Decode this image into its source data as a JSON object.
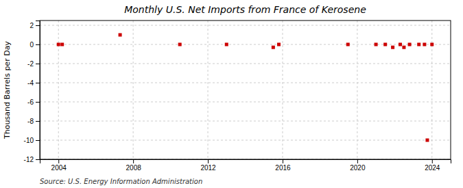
{
  "chart_data": {
    "type": "scatter",
    "title": "Monthly U.S. Net Imports from France of Kerosene",
    "ylabel": "Thousand Barrels per Day",
    "annotations": [
      "Source: U.S. Energy Information Administration"
    ],
    "x": [
      2004.0,
      2004.2,
      2007.3,
      2010.5,
      2013.0,
      2015.5,
      2015.8,
      2019.5,
      2021.0,
      2021.5,
      2021.9,
      2022.3,
      2022.5,
      2022.8,
      2023.3,
      2023.6,
      2023.75,
      2024.0
    ],
    "values": [
      0,
      0,
      1,
      0,
      0,
      -0.3,
      0,
      0,
      0,
      0,
      -0.3,
      0,
      -0.3,
      0,
      0,
      0,
      -10,
      0
    ],
    "color": "#cc0000",
    "marker": "square",
    "xlim": [
      2003.0,
      2025.0
    ],
    "ylim": [
      -12,
      2.5
    ],
    "xticks": [
      2004,
      2008,
      2012,
      2016,
      2020,
      2024
    ],
    "yticks": [
      2,
      0,
      -2,
      -4,
      -6,
      -8,
      -10,
      -12
    ],
    "grid": true
  }
}
